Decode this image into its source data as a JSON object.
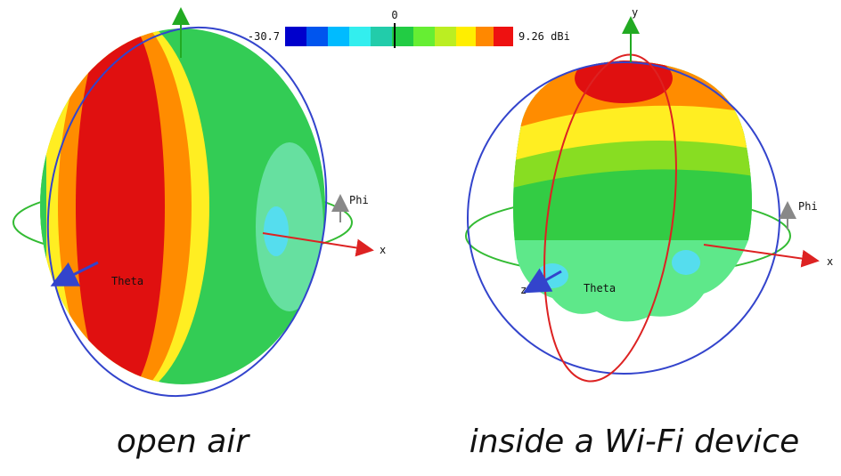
{
  "colorbar": {
    "min_label": "-30.7",
    "mid_label": "0",
    "max_label": "9.26 dBi"
  },
  "panels": [
    {
      "caption": "open air",
      "axes": {
        "phi": "Phi",
        "x": "x",
        "theta": "Theta"
      }
    },
    {
      "caption": "inside a Wi-Fi device",
      "axes": {
        "y": "y",
        "phi": "Phi",
        "x": "x",
        "z": "z",
        "theta": "Theta"
      }
    }
  ]
}
